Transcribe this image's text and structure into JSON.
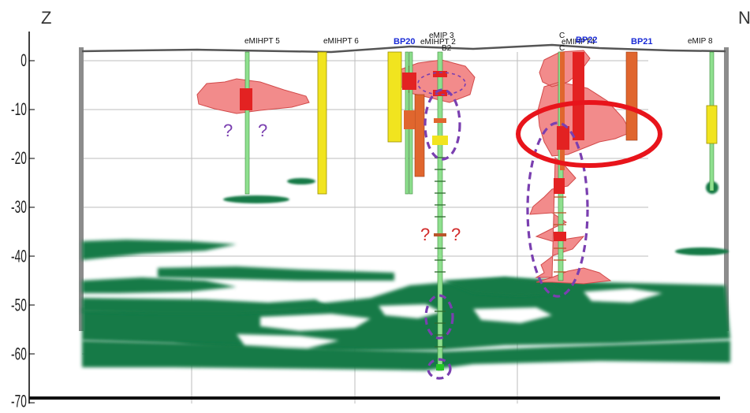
{
  "corner_labels": {
    "left": "Z",
    "right": "N"
  },
  "depth_ticks": [
    "0",
    "-10",
    "-20",
    "-30",
    "-40",
    "-50",
    "-60",
    "-70"
  ],
  "borings": [
    {
      "id": "emihpt5",
      "label": "eMIHPT 5",
      "bold": false
    },
    {
      "id": "emihpt6",
      "label": "eMIHPT 6",
      "bold": false
    },
    {
      "id": "bp20",
      "label": "BP20",
      "bold": true
    },
    {
      "id": "emihpt2",
      "label": "eMIHPT 2",
      "bold": false
    },
    {
      "id": "emip3",
      "label": "eMIP 3",
      "bold": false
    },
    {
      "id": "b2",
      "label": "B2",
      "bold": false
    },
    {
      "id": "c",
      "label": "C",
      "bold": false
    },
    {
      "id": "emihpt4",
      "label": "eMIHPT4",
      "bold": false
    },
    {
      "id": "bp22",
      "label": "BP22",
      "bold": true
    },
    {
      "id": "bp21",
      "label": "BP21",
      "bold": true
    },
    {
      "id": "emip8",
      "label": "eMIP 8",
      "bold": false
    }
  ],
  "question_marks": [
    {
      "id": "q1",
      "text": "?",
      "tone": "purple"
    },
    {
      "id": "q2",
      "text": "?",
      "tone": "purple"
    },
    {
      "id": "q3",
      "text": "?",
      "tone": "red"
    },
    {
      "id": "q4",
      "text": "?",
      "tone": "red"
    }
  ],
  "colors": {
    "plume": "#f28b8b",
    "plume_edge": "#d24a4a",
    "plume_core": "#e32222",
    "green_layer": "#127a47",
    "yellow_well": "#f1e41f",
    "orange_well": "#e0662e",
    "light_green_well": "#8fe08f",
    "highlight_ring": "#e8141b",
    "dashed_ring": "#7a3fb0",
    "boring_label_blue": "#1a2bd6",
    "question_purple": "#7a3fb0",
    "question_red": "#d22b2b"
  }
}
